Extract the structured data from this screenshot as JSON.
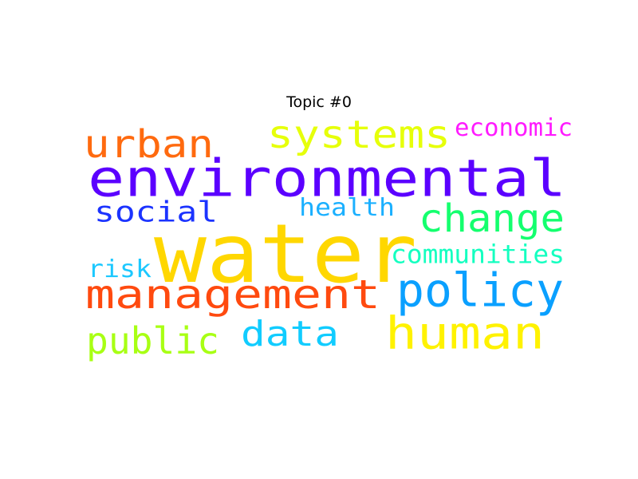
{
  "chart_data": {
    "type": "wordcloud",
    "title": "Topic #0",
    "words": [
      {
        "text": "water",
        "color": "#FFD700"
      },
      {
        "text": "environmental",
        "color": "#5B00FF"
      },
      {
        "text": "management",
        "color": "#FF4A0F"
      },
      {
        "text": "human",
        "color": "#FFF200"
      },
      {
        "text": "policy",
        "color": "#0AA0FF"
      },
      {
        "text": "systems",
        "color": "#E6FF0A"
      },
      {
        "text": "change",
        "color": "#14FF6E"
      },
      {
        "text": "urban",
        "color": "#FF6A0F"
      },
      {
        "text": "data",
        "color": "#11CCFF"
      },
      {
        "text": "public",
        "color": "#A8FF14"
      },
      {
        "text": "social",
        "color": "#1B33FF"
      },
      {
        "text": "health",
        "color": "#1BB0FF"
      },
      {
        "text": "communities",
        "color": "#14FFC0"
      },
      {
        "text": "economic",
        "color": "#FF1BFF"
      },
      {
        "text": "risk",
        "color": "#1BC8FF"
      }
    ]
  }
}
